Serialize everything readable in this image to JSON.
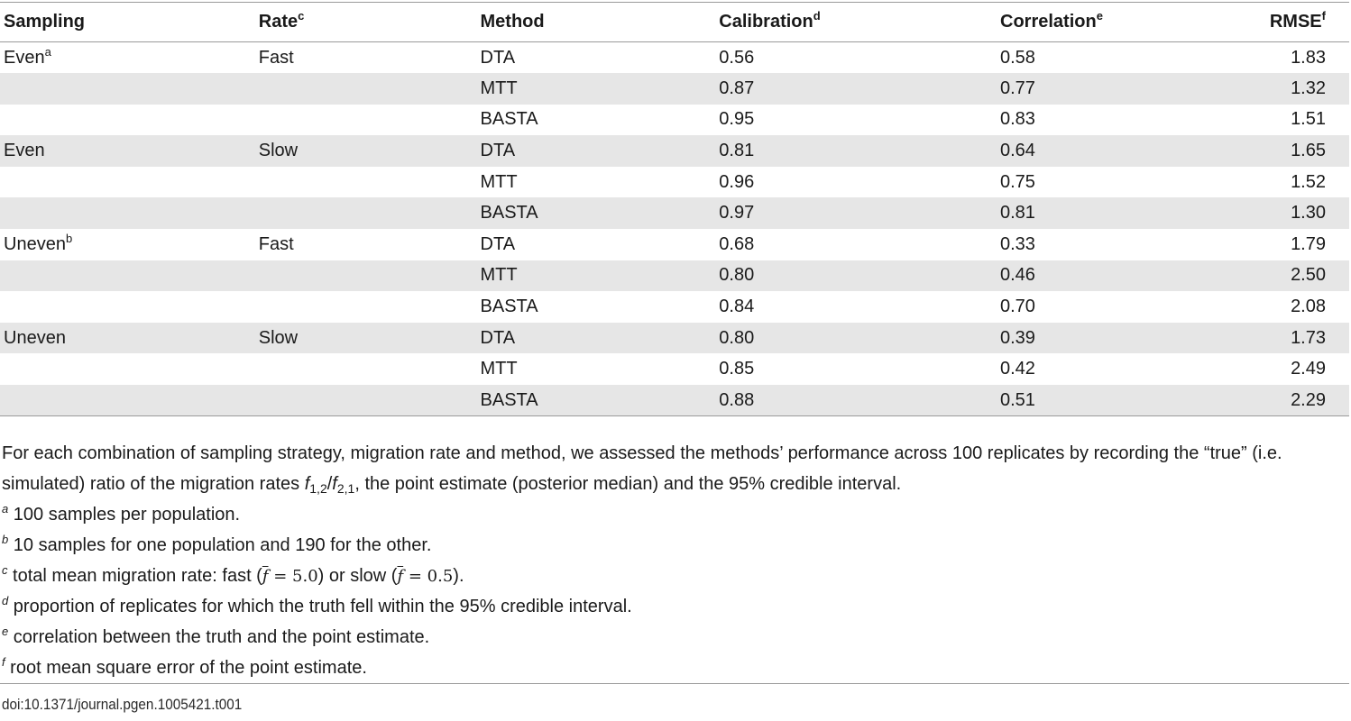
{
  "table": {
    "headers": {
      "sampling": "Sampling",
      "rate": "Rate",
      "rate_sup": "c",
      "method": "Method",
      "calibration": "Calibration",
      "calibration_sup": "d",
      "correlation": "Correlation",
      "correlation_sup": "e",
      "rmse": "RMSE",
      "rmse_sup": "f"
    },
    "rows": [
      {
        "sampling": "Even",
        "sampling_sup": "a",
        "rate": "Fast",
        "method": "DTA",
        "calibration": "0.56",
        "correlation": "0.58",
        "rmse": "1.83"
      },
      {
        "sampling": "",
        "sampling_sup": "",
        "rate": "",
        "method": "MTT",
        "calibration": "0.87",
        "correlation": "0.77",
        "rmse": "1.32"
      },
      {
        "sampling": "",
        "sampling_sup": "",
        "rate": "",
        "method": "BASTA",
        "calibration": "0.95",
        "correlation": "0.83",
        "rmse": "1.51"
      },
      {
        "sampling": "Even",
        "sampling_sup": "",
        "rate": "Slow",
        "method": "DTA",
        "calibration": "0.81",
        "correlation": "0.64",
        "rmse": "1.65"
      },
      {
        "sampling": "",
        "sampling_sup": "",
        "rate": "",
        "method": "MTT",
        "calibration": "0.96",
        "correlation": "0.75",
        "rmse": "1.52"
      },
      {
        "sampling": "",
        "sampling_sup": "",
        "rate": "",
        "method": "BASTA",
        "calibration": "0.97",
        "correlation": "0.81",
        "rmse": "1.30"
      },
      {
        "sampling": "Uneven",
        "sampling_sup": "b",
        "rate": "Fast",
        "method": "DTA",
        "calibration": "0.68",
        "correlation": "0.33",
        "rmse": "1.79"
      },
      {
        "sampling": "",
        "sampling_sup": "",
        "rate": "",
        "method": "MTT",
        "calibration": "0.80",
        "correlation": "0.46",
        "rmse": "2.50"
      },
      {
        "sampling": "",
        "sampling_sup": "",
        "rate": "",
        "method": "BASTA",
        "calibration": "0.84",
        "correlation": "0.70",
        "rmse": "2.08"
      },
      {
        "sampling": "Uneven",
        "sampling_sup": "",
        "rate": "Slow",
        "method": "DTA",
        "calibration": "0.80",
        "correlation": "0.39",
        "rmse": "1.73"
      },
      {
        "sampling": "",
        "sampling_sup": "",
        "rate": "",
        "method": "MTT",
        "calibration": "0.85",
        "correlation": "0.42",
        "rmse": "2.49"
      },
      {
        "sampling": "",
        "sampling_sup": "",
        "rate": "",
        "method": "BASTA",
        "calibration": "0.88",
        "correlation": "0.51",
        "rmse": "2.29"
      }
    ]
  },
  "notes": {
    "description_part1": "For each combination of sampling strategy, migration rate and method, we assessed the methods’ performance across 100 replicates by recording the “true” (i.e. simulated) ratio of the migration rates ",
    "ratio_f1": "f",
    "ratio_f1_sub": "1,2",
    "ratio_slash": "/",
    "ratio_f2": "f",
    "ratio_f2_sub": "2,1",
    "description_part2": ", the point estimate (posterior median) and the 95% credible interval.",
    "footnote_a_marker": "a",
    "footnote_a": " 100 samples per population.",
    "footnote_b_marker": "b",
    "footnote_b": " 10 samples for one population and 190 for the other.",
    "footnote_c_marker": "c",
    "footnote_c_part1": " total mean migration rate: fast (",
    "footnote_c_fast_var": "f",
    "footnote_c_fast_value": " = 5.0",
    "footnote_c_part2": ") or slow (",
    "footnote_c_slow_var": "f",
    "footnote_c_slow_value": " = 0.5",
    "footnote_c_part3": ").",
    "footnote_d_marker": "d",
    "footnote_d": " proportion of replicates for which the truth fell within the 95% credible interval.",
    "footnote_e_marker": "e",
    "footnote_e": " correlation between the truth and the point estimate.",
    "footnote_f_marker": "f",
    "footnote_f": " root mean square error of the point estimate."
  },
  "doi": "doi:10.1371/journal.pgen.1005421.t001"
}
